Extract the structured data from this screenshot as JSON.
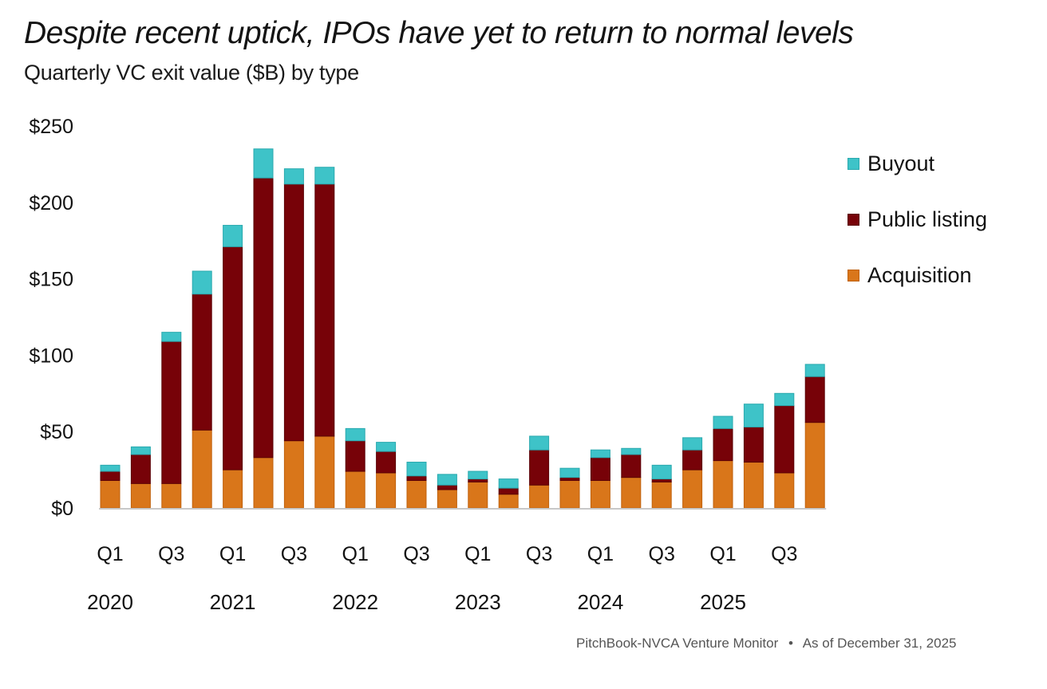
{
  "header": {
    "title": "Despite recent uptick, IPOs have yet to return to normal levels",
    "subtitle": "Quarterly VC exit value ($B) by type"
  },
  "footer": {
    "source": "PitchBook-NVCA Venture Monitor",
    "separator": "•",
    "asof": "As of December 31, 2025"
  },
  "colors": {
    "Acquisition": "#d9761a",
    "Public listing": "#770208",
    "Buyout": "#3ec3c8"
  },
  "chart_data": {
    "type": "bar",
    "stacked": true,
    "title": "Despite recent uptick, IPOs have yet to return to normal levels",
    "subtitle": "Quarterly VC exit value ($B) by type",
    "xlabel": "",
    "ylabel": "",
    "ylim": [
      0,
      250
    ],
    "yticks": [
      0,
      50,
      100,
      150,
      200,
      250
    ],
    "ytick_labels": [
      "$0",
      "$50",
      "$100",
      "$150",
      "$200",
      "$250"
    ],
    "grid": false,
    "legend_position": "right",
    "legend": [
      "Buyout",
      "Public listing",
      "Acquisition"
    ],
    "categories": [
      "Q1 2020",
      "Q2 2020",
      "Q3 2020",
      "Q4 2020",
      "Q1 2021",
      "Q2 2021",
      "Q3 2021",
      "Q4 2021",
      "Q1 2022",
      "Q2 2022",
      "Q3 2022",
      "Q4 2022",
      "Q1 2023",
      "Q2 2023",
      "Q3 2023",
      "Q4 2023",
      "Q1 2024",
      "Q2 2024",
      "Q3 2024",
      "Q4 2024",
      "Q1 2025",
      "Q2 2025",
      "Q3 2025",
      "Q4 2025"
    ],
    "x_quarter_labels": [
      "Q1",
      "",
      "Q3",
      "",
      "Q1",
      "",
      "Q3",
      "",
      "Q1",
      "",
      "Q3",
      "",
      "Q1",
      "",
      "Q3",
      "",
      "Q1",
      "",
      "Q3",
      "",
      "Q1",
      "",
      "Q3",
      ""
    ],
    "x_year_labels": [
      "2020",
      "",
      "",
      "",
      "2021",
      "",
      "",
      "",
      "2022",
      "",
      "",
      "",
      "2023",
      "",
      "",
      "",
      "2024",
      "",
      "",
      "",
      "2025",
      "",
      "",
      ""
    ],
    "series": [
      {
        "name": "Acquisition",
        "values": [
          18,
          16,
          16,
          51,
          25,
          33,
          44,
          47,
          24,
          23,
          18,
          12,
          17,
          9,
          15,
          18,
          18,
          20,
          17,
          25,
          31,
          30,
          23,
          56
        ]
      },
      {
        "name": "Public listing",
        "values": [
          6,
          19,
          93,
          89,
          146,
          183,
          168,
          165,
          20,
          14,
          3,
          3,
          2,
          4,
          23,
          2,
          15,
          15,
          2,
          13,
          21,
          23,
          44,
          30
        ]
      },
      {
        "name": "Buyout",
        "values": [
          4,
          5,
          6,
          15,
          14,
          19,
          10,
          11,
          8,
          6,
          9,
          7,
          5,
          6,
          9,
          6,
          5,
          4,
          9,
          8,
          8,
          15,
          8,
          8
        ]
      }
    ]
  }
}
